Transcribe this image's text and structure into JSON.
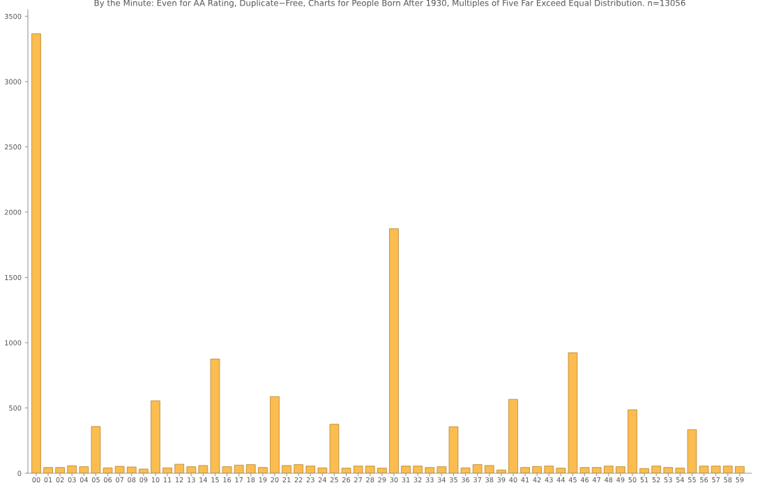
{
  "chart_data": {
    "type": "bar",
    "title": "By the Minute: Even for AA Rating, Duplicate−Free, Charts for People Born After 1930, Multiples of Five Far Exceed Equal Distribution. n=13056",
    "categories": [
      "00",
      "01",
      "02",
      "03",
      "04",
      "05",
      "06",
      "07",
      "08",
      "09",
      "10",
      "11",
      "12",
      "13",
      "14",
      "15",
      "16",
      "17",
      "18",
      "19",
      "20",
      "21",
      "22",
      "23",
      "24",
      "25",
      "26",
      "27",
      "28",
      "29",
      "30",
      "31",
      "32",
      "33",
      "34",
      "35",
      "36",
      "37",
      "38",
      "39",
      "40",
      "41",
      "42",
      "43",
      "44",
      "45",
      "46",
      "47",
      "48",
      "49",
      "50",
      "51",
      "52",
      "53",
      "54",
      "55",
      "56",
      "57",
      "58",
      "59"
    ],
    "values": [
      3367,
      44,
      44,
      57,
      50,
      358,
      41,
      53,
      48,
      32,
      555,
      41,
      69,
      50,
      59,
      875,
      50,
      62,
      66,
      44,
      587,
      59,
      66,
      55,
      41,
      375,
      39,
      55,
      55,
      39,
      1873,
      55,
      55,
      44,
      50,
      356,
      41,
      66,
      59,
      25,
      566,
      44,
      52,
      55,
      39,
      923,
      44,
      44,
      55,
      50,
      486,
      36,
      55,
      44,
      39,
      333,
      55,
      55,
      55,
      52
    ],
    "color": "#fbbd50",
    "ylim": [
      0,
      3550
    ],
    "yticks": [
      0,
      500,
      1000,
      1500,
      2000,
      2500,
      3000,
      3500
    ],
    "grid": false
  }
}
